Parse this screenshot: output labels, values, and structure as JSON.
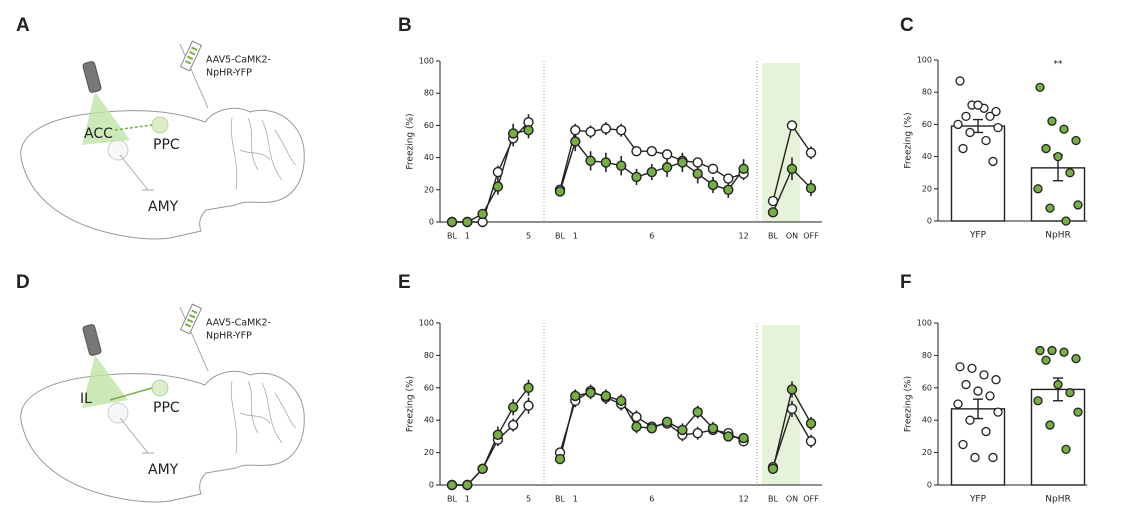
{
  "panel_labels": [
    "A",
    "B",
    "C",
    "D",
    "E",
    "F"
  ],
  "diagrams": [
    {
      "regions": [
        "ACC",
        "PPC",
        "AMY"
      ],
      "virus": [
        "AAV5-CaMK2-",
        "NpHR-YFP"
      ]
    },
    {
      "regions": [
        "IL",
        "PPC",
        "AMY"
      ],
      "virus": [
        "AAV5-CaMK2-",
        "NpHR-YFP"
      ]
    }
  ],
  "chart_data": [
    {
      "type": "line",
      "ylabel": "Freezing (%)",
      "ylim": [
        0,
        100
      ],
      "yticks": [
        0,
        20,
        40,
        60,
        80,
        100
      ],
      "sessions": [
        {
          "categories": [
            "BL",
            "1",
            null,
            null,
            null,
            "5"
          ],
          "series": [
            {
              "color": "#ffffff",
              "values": [
                0,
                0,
                0,
                31,
                52,
                62
              ],
              "errors": [
                0,
                1,
                1,
                4,
                5,
                5
              ]
            },
            {
              "color": "#76b041",
              "values": [
                0,
                0,
                5,
                22,
                55,
                57
              ],
              "errors": [
                0,
                1,
                2,
                5,
                6,
                5
              ]
            }
          ]
        },
        {
          "categories": [
            "BL",
            "1",
            null,
            null,
            null,
            null,
            "6",
            null,
            null,
            null,
            null,
            null,
            "12"
          ],
          "series": [
            {
              "color": "#ffffff",
              "values": [
                20,
                57,
                56,
                58,
                57,
                44,
                44,
                42,
                38,
                37,
                33,
                27,
                30
              ],
              "errors": [
                3,
                4,
                4,
                4,
                4,
                3,
                3,
                3,
                3,
                3,
                3,
                3,
                4
              ]
            },
            {
              "color": "#76b041",
              "values": [
                19,
                50,
                38,
                37,
                35,
                28,
                31,
                34,
                37,
                30,
                23,
                20,
                33
              ],
              "errors": [
                3,
                6,
                6,
                6,
                6,
                5,
                5,
                6,
                6,
                6,
                5,
                5,
                6
              ]
            }
          ]
        },
        {
          "categories": [
            "BL",
            "ON",
            "OFF"
          ],
          "series": [
            {
              "color": "#ffffff",
              "values": [
                13,
                60,
                43
              ],
              "errors": [
                3,
                3,
                4
              ]
            },
            {
              "color": "#76b041",
              "values": [
                6,
                33,
                21
              ],
              "errors": [
                3,
                7,
                5
              ]
            }
          ]
        }
      ]
    },
    {
      "type": "bar",
      "ylabel": "Freezing (%)",
      "ylim": [
        0,
        100
      ],
      "yticks": [
        0,
        20,
        40,
        60,
        80,
        100
      ],
      "categories": [
        "YFP",
        "NpHR"
      ],
      "values": [
        59,
        33
      ],
      "errors": [
        4,
        8
      ],
      "point_colors": [
        "#ffffff",
        "#76b041"
      ],
      "points": [
        [
          87,
          72,
          70,
          68,
          65,
          72,
          65,
          60,
          58,
          55,
          50,
          45,
          37
        ],
        [
          83,
          62,
          57,
          50,
          45,
          40,
          30,
          20,
          10,
          8,
          0
        ]
      ],
      "annotations": [
        {
          "category": 1,
          "text": "**"
        }
      ]
    },
    {
      "type": "line",
      "ylabel": "Freezing (%)",
      "ylim": [
        0,
        100
      ],
      "yticks": [
        0,
        20,
        40,
        60,
        80,
        100
      ],
      "sessions": [
        {
          "categories": [
            "BL",
            "1",
            null,
            null,
            null,
            "5"
          ],
          "series": [
            {
              "color": "#ffffff",
              "values": [
                0,
                0,
                10,
                28,
                37,
                49
              ],
              "errors": [
                0,
                1,
                3,
                4,
                4,
                5
              ]
            },
            {
              "color": "#76b041",
              "values": [
                0,
                0,
                10,
                31,
                48,
                60
              ],
              "errors": [
                0,
                1,
                3,
                5,
                5,
                5
              ]
            }
          ]
        },
        {
          "categories": [
            "BL",
            "1",
            null,
            null,
            null,
            null,
            "6",
            null,
            null,
            null,
            null,
            null,
            "12"
          ],
          "series": [
            {
              "color": "#ffffff",
              "values": [
                20,
                52,
                58,
                54,
                50,
                42,
                36,
                38,
                31,
                32,
                34,
                32,
                27
              ],
              "errors": [
                3,
                4,
                4,
                4,
                4,
                4,
                3,
                3,
                4,
                4,
                3,
                3,
                3
              ]
            },
            {
              "color": "#76b041",
              "values": [
                16,
                55,
                57,
                55,
                52,
                36,
                35,
                39,
                34,
                45,
                35,
                30,
                29
              ],
              "errors": [
                3,
                4,
                4,
                4,
                4,
                4,
                3,
                3,
                4,
                4,
                4,
                3,
                3
              ]
            }
          ]
        },
        {
          "categories": [
            "BL",
            "ON",
            "OFF"
          ],
          "series": [
            {
              "color": "#ffffff",
              "values": [
                11,
                47,
                27
              ],
              "errors": [
                3,
                5,
                4
              ]
            },
            {
              "color": "#76b041",
              "values": [
                10,
                59,
                38
              ],
              "errors": [
                2,
                5,
                4
              ]
            }
          ]
        }
      ]
    },
    {
      "type": "bar",
      "ylabel": "Freezing (%)",
      "ylim": [
        0,
        100
      ],
      "yticks": [
        0,
        20,
        40,
        60,
        80,
        100
      ],
      "categories": [
        "YFP",
        "NpHR"
      ],
      "values": [
        47,
        59
      ],
      "errors": [
        6,
        7
      ],
      "point_colors": [
        "#ffffff",
        "#76b041"
      ],
      "points": [
        [
          73,
          72,
          68,
          65,
          62,
          58,
          55,
          50,
          45,
          40,
          33,
          25,
          17,
          17
        ],
        [
          83,
          83,
          82,
          78,
          77,
          62,
          57,
          52,
          45,
          37,
          22
        ]
      ],
      "annotations": []
    }
  ]
}
